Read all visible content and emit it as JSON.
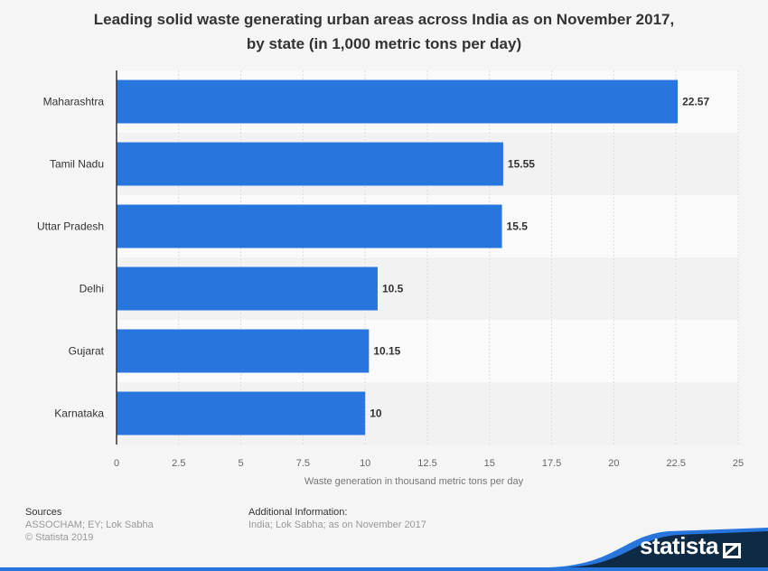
{
  "chart_data": {
    "type": "bar",
    "orientation": "horizontal",
    "title": "Leading solid waste generating urban areas across India as on November 2017, by state (in 1,000 metric tons per day)",
    "title_lines": [
      "Leading solid waste generating urban areas across India as on November 2017,",
      "by state (in 1,000 metric tons per day)"
    ],
    "categories": [
      "Maharashtra",
      "Tamil Nadu",
      "Uttar Pradesh",
      "Delhi",
      "Gujarat",
      "Karnataka"
    ],
    "values": [
      22.57,
      15.55,
      15.5,
      10.5,
      10.15,
      10
    ],
    "data_labels": [
      "22.57",
      "15.55",
      "15.5",
      "10.5",
      "10.15",
      "10"
    ],
    "xlabel": "Waste generation in thousand metric tons per day",
    "ylabel": "",
    "xlim": [
      0,
      25
    ],
    "x_ticks": [
      "0",
      "2.5",
      "5",
      "7.5",
      "10",
      "12.5",
      "15",
      "17.5",
      "20",
      "22.5",
      "25"
    ],
    "grid": true,
    "bar_color": "#2876dd"
  },
  "footer": {
    "sources_heading": "Sources",
    "sources": "ASSOCHAM; EY; Lok Sabha",
    "copyright": "© Statista 2019",
    "info_heading": "Additional Information:",
    "info": "India; Lok Sabha; as on November 2017",
    "logo": "statista"
  }
}
